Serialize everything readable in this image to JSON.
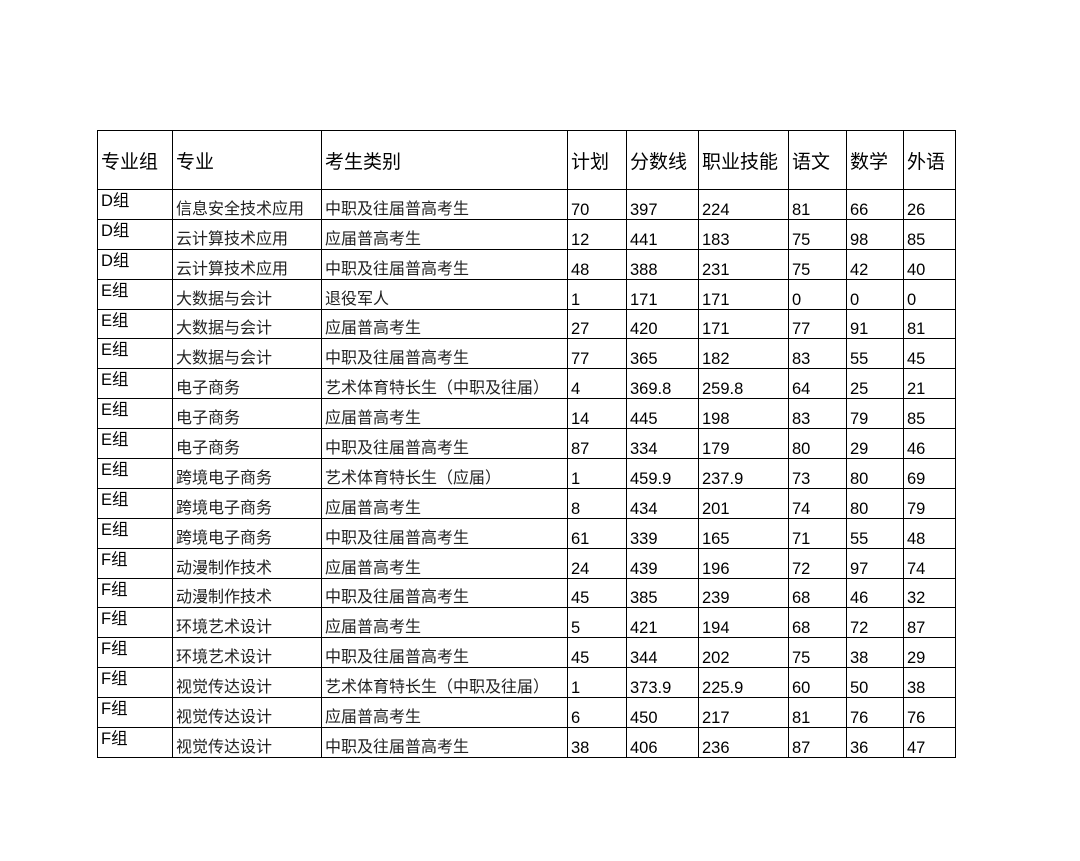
{
  "table": {
    "headers": [
      "专业组",
      "专业",
      "考生类别",
      "计划",
      "分数线",
      "职业技能",
      "语文",
      "数学",
      "外语"
    ],
    "rows": [
      [
        "D组",
        "信息安全技术应用",
        "中职及往届普高考生",
        "70",
        "397",
        "224",
        "81",
        "66",
        "26"
      ],
      [
        "D组",
        "云计算技术应用",
        "应届普高考生",
        "12",
        "441",
        "183",
        "75",
        "98",
        "85"
      ],
      [
        "D组",
        "云计算技术应用",
        "中职及往届普高考生",
        "48",
        "388",
        "231",
        "75",
        "42",
        "40"
      ],
      [
        "E组",
        "大数据与会计",
        "退役军人",
        "1",
        "171",
        "171",
        "0",
        "0",
        "0"
      ],
      [
        "E组",
        "大数据与会计",
        "应届普高考生",
        "27",
        "420",
        "171",
        "77",
        "91",
        "81"
      ],
      [
        "E组",
        "大数据与会计",
        "中职及往届普高考生",
        "77",
        "365",
        "182",
        "83",
        "55",
        "45"
      ],
      [
        "E组",
        "电子商务",
        "艺术体育特长生（中职及往届）",
        "4",
        "369.8",
        "259.8",
        "64",
        "25",
        "21"
      ],
      [
        "E组",
        "电子商务",
        "应届普高考生",
        "14",
        "445",
        "198",
        "83",
        "79",
        "85"
      ],
      [
        "E组",
        "电子商务",
        "中职及往届普高考生",
        "87",
        "334",
        "179",
        "80",
        "29",
        "46"
      ],
      [
        "E组",
        "跨境电子商务",
        "艺术体育特长生（应届）",
        "1",
        "459.9",
        "237.9",
        "73",
        "80",
        "69"
      ],
      [
        "E组",
        "跨境电子商务",
        "应届普高考生",
        "8",
        "434",
        "201",
        "74",
        "80",
        "79"
      ],
      [
        "E组",
        "跨境电子商务",
        "中职及往届普高考生",
        "61",
        "339",
        "165",
        "71",
        "55",
        "48"
      ],
      [
        "F组",
        "动漫制作技术",
        "应届普高考生",
        "24",
        "439",
        "196",
        "72",
        "97",
        "74"
      ],
      [
        "F组",
        "动漫制作技术",
        "中职及往届普高考生",
        "45",
        "385",
        "239",
        "68",
        "46",
        "32"
      ],
      [
        "F组",
        "环境艺术设计",
        "应届普高考生",
        "5",
        "421",
        "194",
        "68",
        "72",
        "87"
      ],
      [
        "F组",
        "环境艺术设计",
        "中职及往届普高考生",
        "45",
        "344",
        "202",
        "75",
        "38",
        "29"
      ],
      [
        "F组",
        "视觉传达设计",
        "艺术体育特长生（中职及往届）",
        "1",
        "373.9",
        "225.9",
        "60",
        "50",
        "38"
      ],
      [
        "F组",
        "视觉传达设计",
        "应届普高考生",
        "6",
        "450",
        "217",
        "81",
        "76",
        "76"
      ],
      [
        "F组",
        "视觉传达设计",
        "中职及往届普高考生",
        "38",
        "406",
        "236",
        "87",
        "36",
        "47"
      ]
    ]
  }
}
